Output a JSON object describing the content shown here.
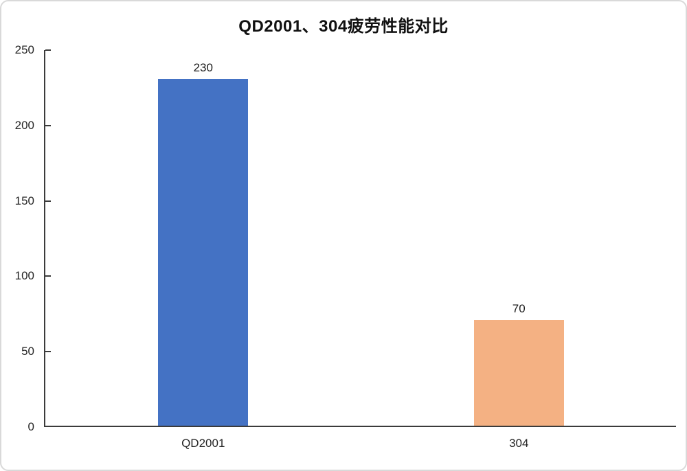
{
  "chart_data": {
    "type": "bar",
    "title": "QD2001、304疲劳性能对比",
    "categories": [
      "QD2001",
      "304"
    ],
    "values": [
      230,
      70
    ],
    "data_labels": [
      "230",
      "70"
    ],
    "bar_colors": [
      "#4472C4",
      "#F4B183"
    ],
    "yticks": [
      0,
      50,
      100,
      150,
      200,
      250
    ],
    "ylim": [
      0,
      250
    ],
    "xlabel": "",
    "ylabel": "",
    "grid": false,
    "legend": "none",
    "colors": {
      "series_qd2001": "#4472C4",
      "series_304": "#F4B183",
      "axis_line": "#3b3b3b",
      "text": "#262626",
      "background": "#ffffff",
      "frame_border": "#d9d9d9"
    }
  }
}
